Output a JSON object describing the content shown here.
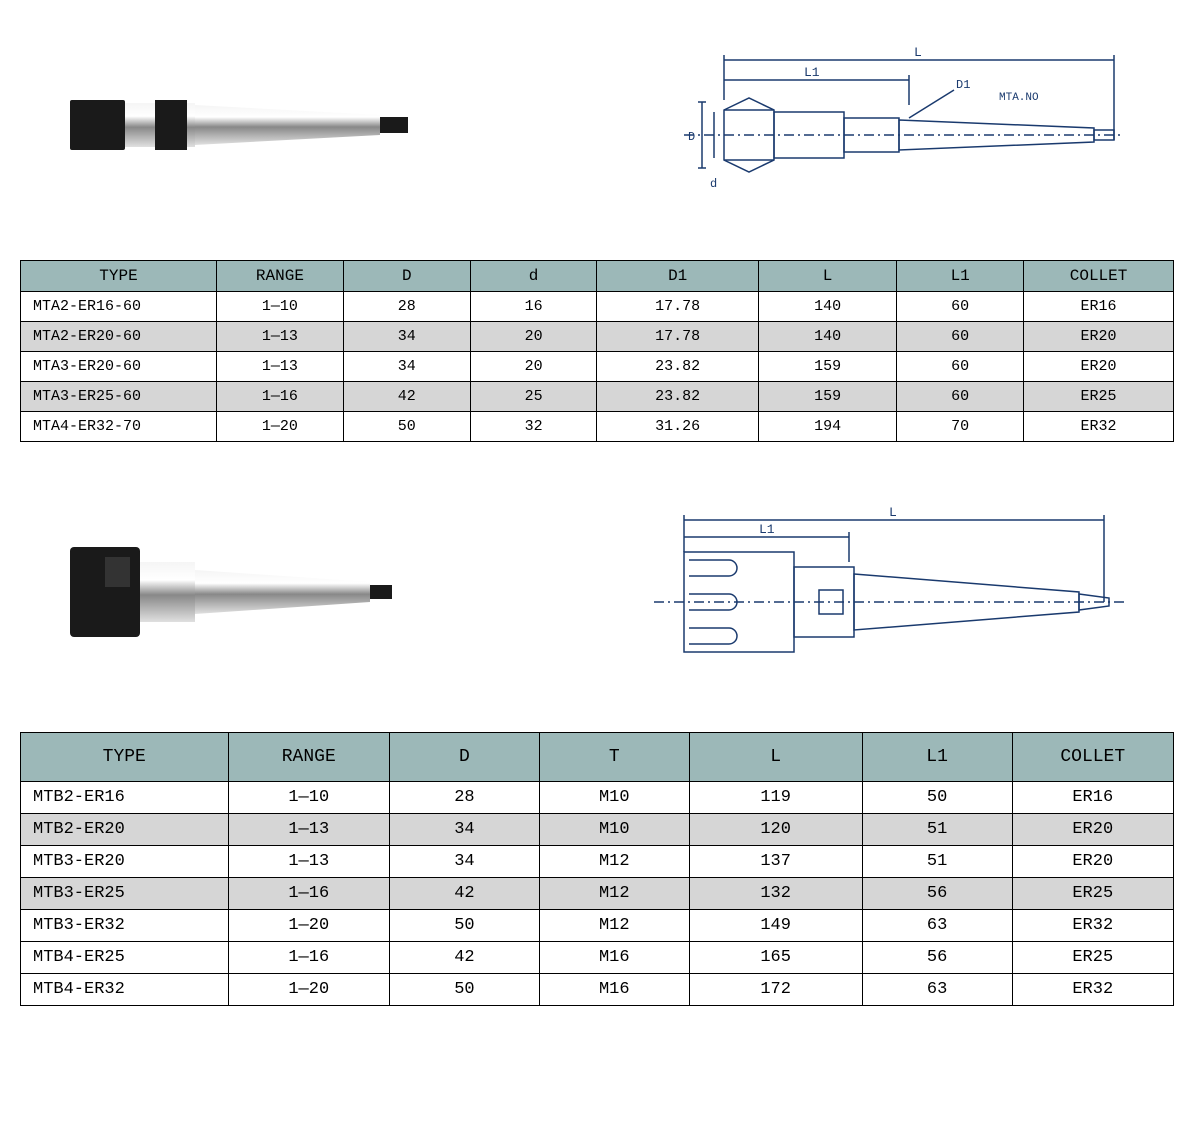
{
  "colors": {
    "header_bg": "#9cb8b8",
    "alt_row_bg": "#d6d6d6",
    "border": "#000000",
    "diagram_line": "#1a3a6e",
    "background": "#ffffff"
  },
  "font": {
    "family": "Courier New",
    "header_size_pt": 16,
    "cell_size_pt": 15,
    "t2_header_size_pt": 18,
    "t2_cell_size_pt": 17
  },
  "section1": {
    "photo_alt": "MTA collet chuck photo",
    "diagram": {
      "labels": {
        "L": "L",
        "L1": "L1",
        "D": "D",
        "d": "d",
        "D1": "D1",
        "taper": "MTA.NO"
      }
    },
    "table": {
      "columns": [
        "TYPE",
        "RANGE",
        "D",
        "d",
        "D1",
        "L",
        "L1",
        "COLLET"
      ],
      "col_widths_pct": [
        17,
        11,
        11,
        11,
        14,
        12,
        11,
        13
      ],
      "rows": [
        {
          "cells": [
            "MTA2-ER16-60",
            "1—10",
            "28",
            "16",
            "17.78",
            "140",
            "60",
            "ER16"
          ],
          "alt": false
        },
        {
          "cells": [
            "MTA2-ER20-60",
            "1—13",
            "34",
            "20",
            "17.78",
            "140",
            "60",
            "ER20"
          ],
          "alt": true
        },
        {
          "cells": [
            "MTA3-ER20-60",
            "1—13",
            "34",
            "20",
            "23.82",
            "159",
            "60",
            "ER20"
          ],
          "alt": false
        },
        {
          "cells": [
            "MTA3-ER25-60",
            "1—16",
            "42",
            "25",
            "23.82",
            "159",
            "60",
            "ER25"
          ],
          "alt": true
        },
        {
          "cells": [
            "MTA4-ER32-70",
            "1—20",
            "50",
            "32",
            "31.26",
            "194",
            "70",
            "ER32"
          ],
          "alt": false
        }
      ]
    }
  },
  "section2": {
    "photo_alt": "MTB collet chuck photo",
    "diagram": {
      "labels": {
        "L": "L",
        "L1": "L1"
      }
    },
    "table": {
      "columns": [
        "TYPE",
        "RANGE",
        "D",
        "T",
        "L",
        "L1",
        "COLLET"
      ],
      "col_widths_pct": [
        18,
        14,
        13,
        13,
        15,
        13,
        14
      ],
      "rows": [
        {
          "cells": [
            "MTB2-ER16",
            "1—10",
            "28",
            "M10",
            "119",
            "50",
            "ER16"
          ],
          "alt": false
        },
        {
          "cells": [
            "MTB2-ER20",
            "1—13",
            "34",
            "M10",
            "120",
            "51",
            "ER20"
          ],
          "alt": true
        },
        {
          "cells": [
            "MTB3-ER20",
            "1—13",
            "34",
            "M12",
            "137",
            "51",
            "ER20"
          ],
          "alt": false
        },
        {
          "cells": [
            "MTB3-ER25",
            "1—16",
            "42",
            "M12",
            "132",
            "56",
            "ER25"
          ],
          "alt": true
        },
        {
          "cells": [
            "MTB3-ER32",
            "1—20",
            "50",
            "M12",
            "149",
            "63",
            "ER32"
          ],
          "alt": false
        },
        {
          "cells": [
            "MTB4-ER25",
            "1—16",
            "42",
            "M16",
            "165",
            "56",
            "ER25"
          ],
          "alt": false
        },
        {
          "cells": [
            "MTB4-ER32",
            "1—20",
            "50",
            "M16",
            "172",
            "63",
            "ER32"
          ],
          "alt": false
        }
      ]
    }
  }
}
